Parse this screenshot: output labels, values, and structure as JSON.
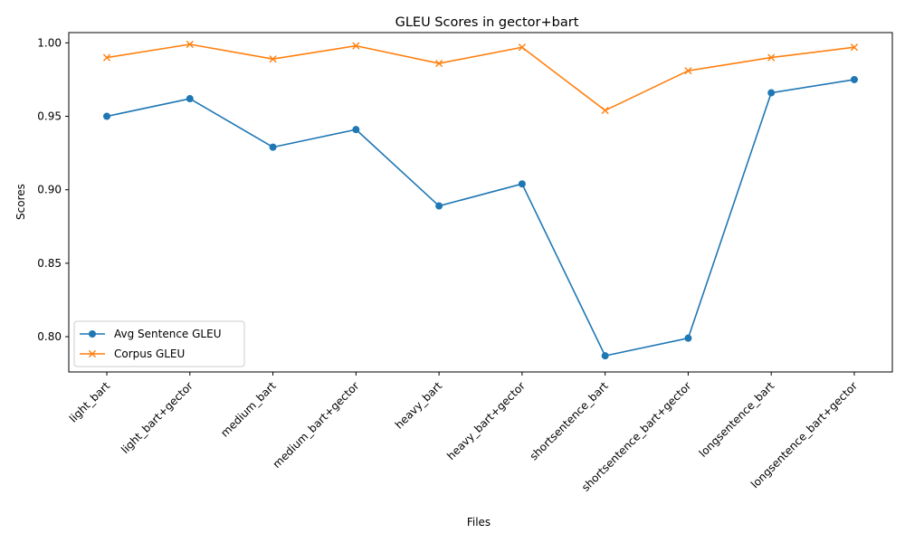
{
  "chart_data": {
    "type": "line",
    "title": "GLEU Scores in gector+bart",
    "xlabel": "Files",
    "ylabel": "Scores",
    "categories": [
      "light_bart",
      "light_bart+gector",
      "medium_bart",
      "medium_bart+gector",
      "heavy_bart",
      "heavy_bart+gector",
      "shortsentence_bart",
      "shortsentence_bart+gector",
      "longsentence_bart",
      "longsentence_bart+gector"
    ],
    "ylim": [
      0.776,
      1.007
    ],
    "yticks": [
      0.8,
      0.85,
      0.9,
      0.95,
      1.0
    ],
    "ytick_labels": [
      "0.80",
      "0.85",
      "0.90",
      "0.95",
      "1.00"
    ],
    "grid": false,
    "legend_position": "lower-left",
    "series": [
      {
        "name": "Avg Sentence GLEU",
        "marker": "circle",
        "color": "#1f77b4",
        "values": [
          0.95,
          0.962,
          0.929,
          0.941,
          0.889,
          0.904,
          0.787,
          0.799,
          0.966,
          0.975
        ]
      },
      {
        "name": "Corpus GLEU",
        "marker": "x",
        "color": "#ff7f0e",
        "values": [
          0.99,
          0.999,
          0.989,
          0.998,
          0.986,
          0.997,
          0.954,
          0.981,
          0.99,
          0.997
        ]
      }
    ]
  }
}
